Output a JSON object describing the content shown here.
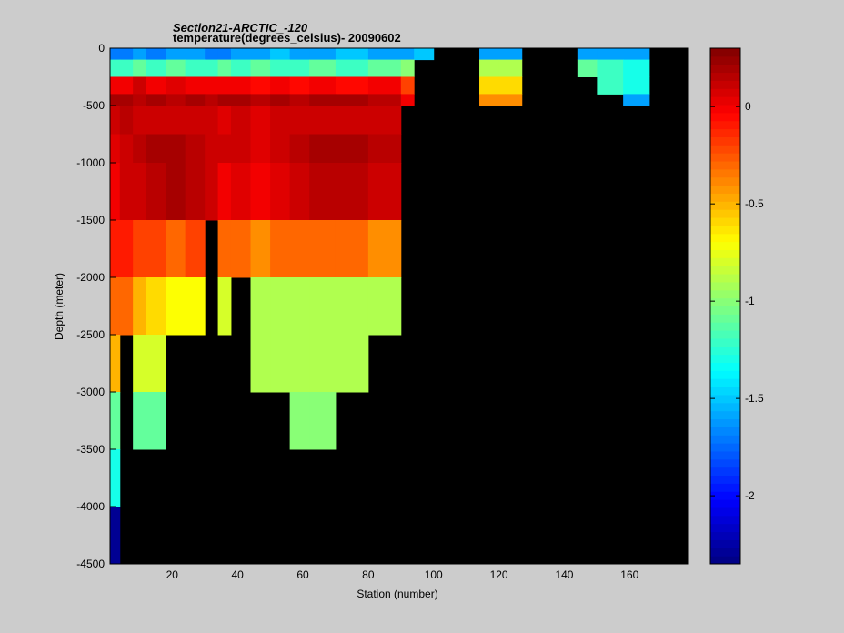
{
  "chart_data": {
    "type": "heatmap",
    "title": "Section21-ARCTIC_-120",
    "subtitle": "temperature(degrees_celsius)- 20090602",
    "x_label": "Station (number)",
    "y_label": "Depth (meter)",
    "xlim": [
      1,
      178
    ],
    "ylim": [
      -4500,
      0
    ],
    "xticks": [
      20,
      40,
      60,
      80,
      100,
      120,
      140,
      160
    ],
    "yticks": [
      0,
      -500,
      -1000,
      -1500,
      -2000,
      -2500,
      -3000,
      -3500,
      -4000,
      -4500
    ],
    "colormap": "jet",
    "colorbar_lim": [
      -2.35,
      0.3
    ],
    "colorbar_ticks": [
      0,
      -0.5,
      -1,
      -1.5,
      -2
    ],
    "x_edges": [
      1,
      4,
      8,
      12,
      18,
      24,
      30,
      34,
      38,
      44,
      50,
      56,
      62,
      70,
      80,
      90,
      94,
      100,
      108,
      114,
      120,
      127,
      135,
      144,
      150,
      158,
      166,
      178
    ],
    "y_edges": [
      0,
      -100,
      -250,
      -400,
      -500,
      -750,
      -1000,
      -1500,
      -2000,
      -2500,
      -3000,
      -3500,
      -4000,
      -4500
    ],
    "values": [
      [
        -1.7,
        -1.7,
        -1.6,
        -1.7,
        -1.6,
        -1.6,
        -1.7,
        -1.7,
        -1.6,
        -1.6,
        -1.5,
        -1.6,
        -1.6,
        -1.5,
        -1.6,
        -1.6,
        -1.5,
        null,
        null,
        -1.6,
        -1.6,
        null,
        null,
        -1.6,
        -1.6,
        -1.6,
        null
      ],
      [
        -1.2,
        -1.2,
        -1.1,
        -1.2,
        -1.1,
        -1.2,
        -1.2,
        -1.1,
        -1.2,
        -1.1,
        -1.2,
        -1.2,
        -1.1,
        -1.2,
        -1.1,
        -1.0,
        null,
        null,
        null,
        -0.9,
        -0.9,
        null,
        null,
        -1.1,
        -1.2,
        -1.3,
        null
      ],
      [
        0.0,
        0.0,
        0.1,
        0.0,
        0.05,
        0.0,
        0.0,
        0.0,
        0.0,
        -0.05,
        0.0,
        -0.05,
        0.0,
        -0.05,
        0.0,
        -0.2,
        null,
        null,
        null,
        -0.6,
        -0.6,
        null,
        null,
        null,
        -1.2,
        -1.3,
        null
      ],
      [
        0.2,
        0.2,
        0.15,
        0.2,
        0.15,
        0.2,
        0.15,
        0.2,
        0.2,
        0.15,
        0.2,
        0.15,
        0.2,
        0.2,
        0.15,
        0.0,
        null,
        null,
        null,
        -0.4,
        -0.4,
        null,
        null,
        null,
        null,
        -1.6,
        null
      ],
      [
        0.1,
        0.15,
        0.1,
        0.1,
        0.1,
        0.1,
        0.1,
        0.05,
        0.1,
        0.05,
        0.1,
        0.1,
        0.1,
        0.1,
        0.1,
        null,
        null,
        null,
        null,
        null,
        null,
        null,
        null,
        null,
        null,
        null,
        null
      ],
      [
        0.05,
        0.1,
        0.15,
        0.2,
        0.2,
        0.15,
        0.1,
        0.1,
        0.1,
        0.05,
        0.1,
        0.15,
        0.2,
        0.2,
        0.15,
        null,
        null,
        null,
        null,
        null,
        null,
        null,
        null,
        null,
        null,
        null,
        null
      ],
      [
        0.0,
        0.1,
        0.1,
        0.15,
        0.2,
        0.15,
        0.1,
        0.0,
        0.05,
        0.0,
        0.05,
        0.1,
        0.15,
        0.15,
        0.1,
        null,
        null,
        null,
        null,
        null,
        null,
        null,
        null,
        null,
        null,
        null,
        null
      ],
      [
        -0.1,
        -0.1,
        -0.2,
        -0.2,
        -0.3,
        -0.2,
        null,
        -0.3,
        -0.3,
        -0.4,
        -0.3,
        -0.3,
        -0.3,
        -0.3,
        -0.4,
        null,
        null,
        null,
        null,
        null,
        null,
        null,
        null,
        null,
        null,
        null,
        null
      ],
      [
        -0.3,
        -0.3,
        -0.5,
        -0.6,
        -0.7,
        -0.7,
        null,
        -0.8,
        null,
        -0.9,
        -0.9,
        -0.9,
        -0.9,
        -0.9,
        -0.9,
        null,
        null,
        null,
        null,
        null,
        null,
        null,
        null,
        null,
        null,
        null,
        null
      ],
      [
        -0.5,
        null,
        -0.8,
        -0.8,
        null,
        null,
        null,
        null,
        null,
        -0.9,
        -0.9,
        -0.9,
        -0.9,
        -0.9,
        null,
        null,
        null,
        null,
        null,
        null,
        null,
        null,
        null,
        null,
        null,
        null,
        null
      ],
      [
        -1.1,
        null,
        -1.1,
        -1.1,
        null,
        null,
        null,
        null,
        null,
        null,
        null,
        -1.0,
        -1.0,
        null,
        null,
        null,
        null,
        null,
        null,
        null,
        null,
        null,
        null,
        null,
        null,
        null,
        null
      ],
      [
        -1.3,
        null,
        null,
        null,
        null,
        null,
        null,
        null,
        null,
        null,
        null,
        null,
        null,
        null,
        null,
        null,
        null,
        null,
        null,
        null,
        null,
        null,
        null,
        null,
        null,
        null,
        null
      ],
      [
        -2.3,
        null,
        null,
        null,
        null,
        null,
        null,
        null,
        null,
        null,
        null,
        null,
        null,
        null,
        null,
        null,
        null,
        null,
        null,
        null,
        null,
        null,
        null,
        null,
        null,
        null,
        null
      ]
    ]
  }
}
